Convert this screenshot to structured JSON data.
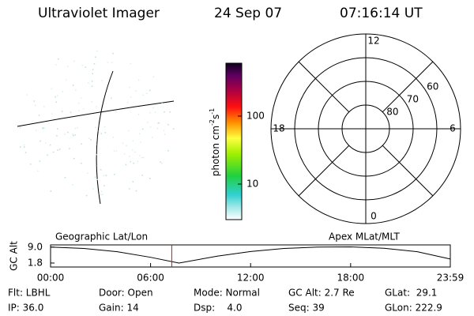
{
  "header": {
    "title": "Ultraviolet Imager",
    "date": "24 Sep 07",
    "time": "07:16:14 UT"
  },
  "colorbar": {
    "label": [
      "photon cm",
      "-2",
      "s",
      "-1"
    ],
    "clim": [
      3,
      600
    ],
    "ticks": [
      10,
      100
    ],
    "log": true
  },
  "polar": {
    "rlim": [
      90,
      50
    ],
    "rings": [
      80,
      70,
      60
    ],
    "mlt_labels": [
      12,
      6,
      0,
      18
    ]
  },
  "map_labels": {
    "left": "Geographic Lat/Lon",
    "right": "Apex MLat/MLT"
  },
  "altitude_plot": {
    "ylabel": "GC Alt",
    "xlim": [
      0,
      23.98
    ],
    "ylim": [
      0,
      10
    ],
    "xticks": [
      {
        "value": 0,
        "label": "00:00"
      },
      {
        "value": 6,
        "label": "06:00"
      },
      {
        "value": 12,
        "label": "12:00"
      },
      {
        "value": 18,
        "label": "18:00"
      },
      {
        "value": 23.98,
        "label": "23:59"
      }
    ],
    "yticks": [
      {
        "value": 1.8,
        "label": "1.8"
      },
      {
        "value": 9.0,
        "label": "9.0"
      }
    ],
    "x": [
      0,
      2,
      4,
      6,
      7.7,
      10,
      12,
      14,
      16,
      18,
      20,
      22,
      23.98
    ],
    "values": [
      9.0,
      8.4,
      6.9,
      4.4,
      1.8,
      4.9,
      7.0,
      8.4,
      9.0,
      9.1,
      8.5,
      6.9,
      3.6
    ],
    "color": "#000000",
    "marker_x": 7.27,
    "marker_color": "#ff0000"
  },
  "footer": [
    [
      "Flt: LBHL",
      "Door: Open",
      "Mode: Normal",
      "GC Alt: 2.7 Re",
      "GLat:  29.1"
    ],
    [
      "IP: 36.0",
      "Gain: 14",
      "Dsp:    4.0",
      "Seq: 39",
      "GLon: 222.9"
    ]
  ]
}
